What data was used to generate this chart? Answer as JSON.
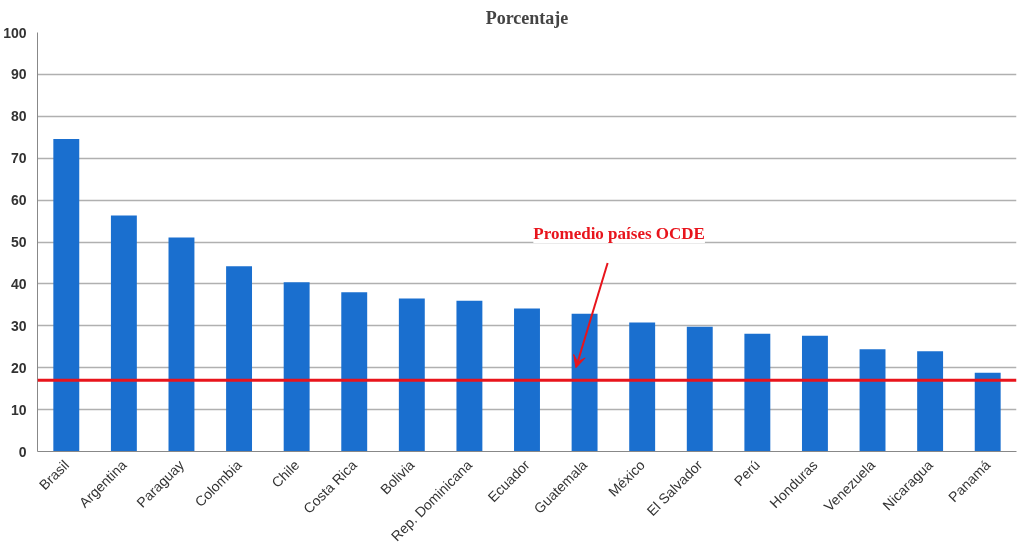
{
  "chart_data": {
    "type": "bar",
    "title": "Porcentaje",
    "categories": [
      "Brasil",
      "Argentina",
      "Paraguay",
      "Colombia",
      "Chile",
      "Costa Rica",
      "Bolivia",
      "Rep. Dominicana",
      "Ecuador",
      "Guatemala",
      "México",
      "El Salvador",
      "Perú",
      "Honduras",
      "Venezuela",
      "Nicaragua",
      "Panamá"
    ],
    "values": [
      74.6,
      56.3,
      51.1,
      44.2,
      40.4,
      38.0,
      36.5,
      36.0,
      34.1,
      32.9,
      30.8,
      29.8,
      28.1,
      27.6,
      24.4,
      23.9,
      18.8
    ],
    "color": "#1a6fcf",
    "ylim": [
      0,
      100
    ],
    "yticks": [
      0,
      10,
      20,
      30,
      40,
      50,
      60,
      70,
      80,
      90,
      100
    ],
    "grid": "y",
    "ref_lines": [
      {
        "axis": "y",
        "value": 17,
        "label": "Promedio países OCDE",
        "color": "#e8141c"
      }
    ]
  }
}
